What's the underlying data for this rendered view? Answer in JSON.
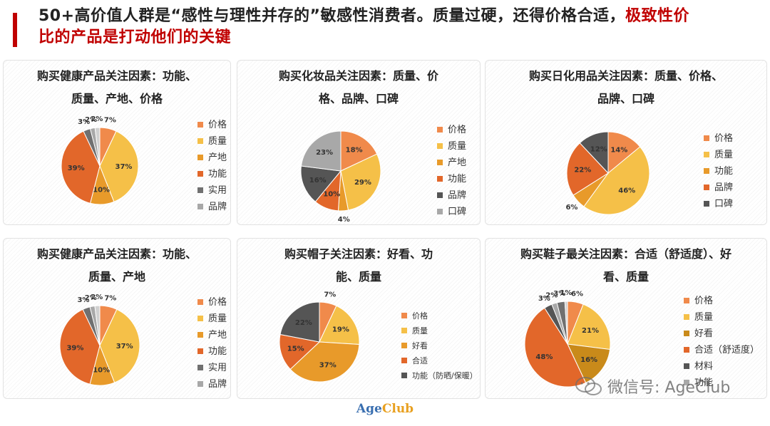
{
  "header": {
    "title_plain": "50+高价值人群是“感性与理性并存的”敏感性消费者。质量过硬，还得价格合适，",
    "title_red_1": "极致性价",
    "title_red_2": "比的产品是打动他们的关键"
  },
  "colors": [
    "#f08a4b",
    "#f5c048",
    "#e89a2a",
    "#e2672a",
    "#707070",
    "#a8a8a8"
  ],
  "chart_data": [
    {
      "type": "pie",
      "title": [
        "购买健康产品关注因素：功能、",
        "质量、产地、价格"
      ],
      "series": [
        {
          "label": "价格",
          "value": 7
        },
        {
          "label": "质量",
          "value": 37
        },
        {
          "label": "产地",
          "value": 10
        },
        {
          "label": "功能",
          "value": 39
        },
        {
          "label": "实用",
          "value": 3
        },
        {
          "label": "品牌",
          "value": 2
        },
        {
          "label": "",
          "value": 2
        }
      ],
      "legend": [
        "价格",
        "质量",
        "产地",
        "功能",
        "实用",
        "品牌"
      ],
      "colors": [
        "#f08a4b",
        "#f5c048",
        "#e89a2a",
        "#e2672a",
        "#707070",
        "#a8a8a8",
        "#d0d0d0"
      ],
      "legend_position": "right"
    },
    {
      "type": "pie",
      "title": [
        "购买化妆品关注因素：质量、价",
        "格、品牌、口碑"
      ],
      "series": [
        {
          "label": "价格",
          "value": 18
        },
        {
          "label": "质量",
          "value": 29
        },
        {
          "label": "产地",
          "value": 4
        },
        {
          "label": "功能",
          "value": 10
        },
        {
          "label": "品牌",
          "value": 16
        },
        {
          "label": "口碑",
          "value": 23
        }
      ],
      "legend": [
        "价格",
        "质量",
        "产地",
        "功能",
        "品牌",
        "口碑"
      ],
      "colors": [
        "#f08a4b",
        "#f5c048",
        "#e89a2a",
        "#e2672a",
        "#555555",
        "#a8a8a8"
      ],
      "legend_position": "right"
    },
    {
      "type": "pie",
      "title": [
        "购买日化用品关注因素：质量、价格、",
        "品牌、口碑"
      ],
      "series": [
        {
          "label": "价格",
          "value": 14
        },
        {
          "label": "质量",
          "value": 46
        },
        {
          "label": "功能",
          "value": 6
        },
        {
          "label": "品牌",
          "value": 22
        },
        {
          "label": "口碑",
          "value": 12
        }
      ],
      "legend": [
        "价格",
        "质量",
        "功能",
        "品牌",
        "口碑"
      ],
      "colors": [
        "#f08a4b",
        "#f5c048",
        "#e89a2a",
        "#e2672a",
        "#555555"
      ],
      "legend_position": "right"
    },
    {
      "type": "pie",
      "title": [
        "购买健康产品关注因素：功能、",
        "质量、产地"
      ],
      "series": [
        {
          "label": "价格",
          "value": 7
        },
        {
          "label": "质量",
          "value": 37
        },
        {
          "label": "产地",
          "value": 10
        },
        {
          "label": "功能",
          "value": 39
        },
        {
          "label": "实用",
          "value": 3
        },
        {
          "label": "品牌",
          "value": 2
        },
        {
          "label": "",
          "value": 2
        }
      ],
      "legend": [
        "价格",
        "质量",
        "产地",
        "功能",
        "实用",
        "品牌"
      ],
      "colors": [
        "#f08a4b",
        "#f5c048",
        "#e89a2a",
        "#e2672a",
        "#707070",
        "#a8a8a8",
        "#d0d0d0"
      ],
      "legend_position": "right"
    },
    {
      "type": "pie",
      "title": [
        "购买帽子关注因素：好看、功",
        "能、质量"
      ],
      "series": [
        {
          "label": "价格",
          "value": 7
        },
        {
          "label": "质量",
          "value": 19
        },
        {
          "label": "好看",
          "value": 37
        },
        {
          "label": "合适",
          "value": 15
        },
        {
          "label": "功能（防晒/保暖）",
          "value": 22
        }
      ],
      "legend": [
        "价格",
        "质量",
        "好看",
        "合适",
        "功能（防晒/保暖）"
      ],
      "colors": [
        "#f08a4b",
        "#f5c048",
        "#e89a2a",
        "#e2672a",
        "#555555"
      ],
      "legend_position": "right"
    },
    {
      "type": "pie",
      "title": [
        "购买鞋子最关注因素：合适（舒适度）、好",
        "看、质量"
      ],
      "series": [
        {
          "label": "价格",
          "value": 6
        },
        {
          "label": "质量",
          "value": 21
        },
        {
          "label": "好看",
          "value": 16
        },
        {
          "label": "合适（舒适度）",
          "value": 48
        },
        {
          "label": "材料",
          "value": 3
        },
        {
          "label": "功能",
          "value": 2
        },
        {
          "label": "",
          "value": 3
        },
        {
          "label": "",
          "value": 1
        }
      ],
      "legend": [
        "价格",
        "质量",
        "好看",
        "合适（舒适度）",
        "材料",
        "功能"
      ],
      "colors": [
        "#f08a4b",
        "#f5c048",
        "#c98a1a",
        "#e2672a",
        "#555555",
        "#a8a8a8",
        "#707070",
        "#d0d0d0"
      ],
      "legend_position": "right"
    }
  ],
  "watermark": {
    "text": "微信号: AgeClub"
  },
  "footer": {
    "logo_a": "Age",
    "logo_b": "Club"
  }
}
